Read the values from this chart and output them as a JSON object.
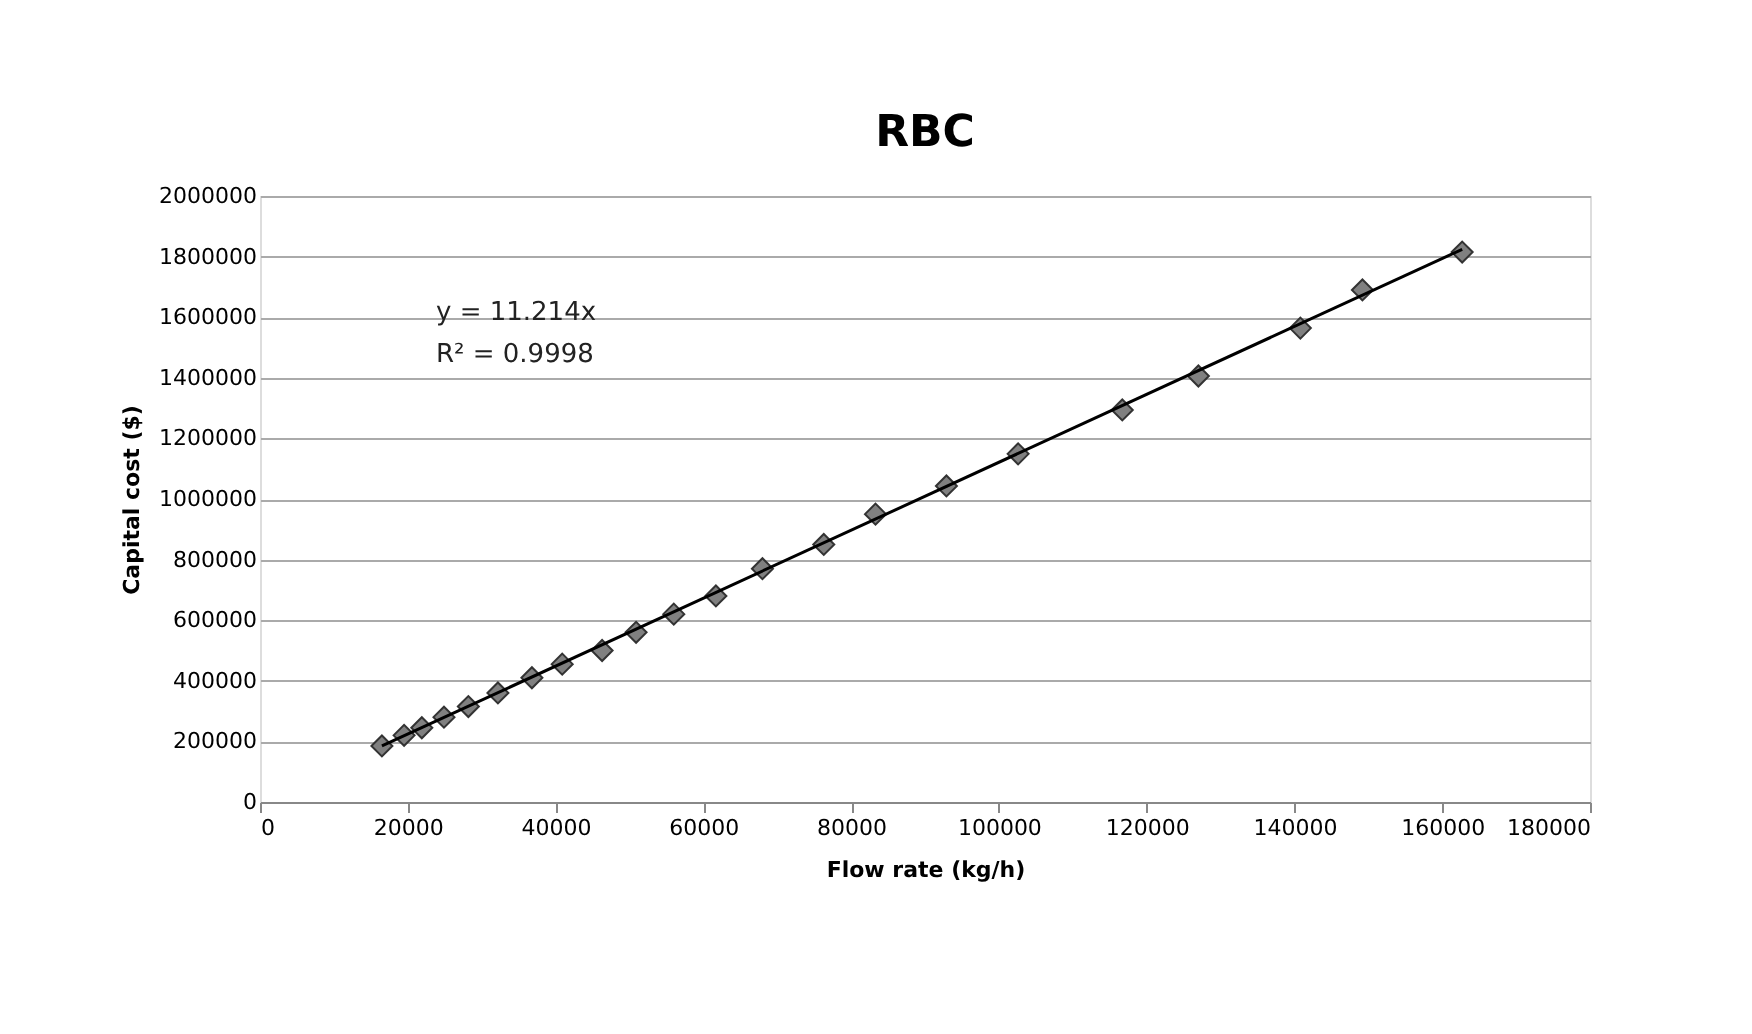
{
  "chart_data": {
    "type": "scatter",
    "title": "RBC",
    "xlabel": "Flow rate (kg/h)",
    "ylabel": "Capital cost ($)",
    "series": [
      {
        "marker": "diamond",
        "color": "#808080",
        "x": [
          16500,
          19500,
          21900,
          24900,
          28200,
          32200,
          36800,
          40900,
          46300,
          50900,
          56000,
          61700,
          68000,
          76300,
          83300,
          92900,
          102600,
          116700,
          127000,
          140800,
          149200,
          162700
        ],
        "values": [
          185000,
          220000,
          245000,
          280000,
          315000,
          360000,
          410000,
          455000,
          500000,
          560000,
          620000,
          680000,
          770000,
          850000,
          950000,
          1043000,
          1149000,
          1294000,
          1406000,
          1564000,
          1690000,
          1815000
        ]
      },
      {
        "type": "line",
        "marker": "none",
        "color": "#000000",
        "x": [
          16500,
          162700
        ],
        "values": [
          185000,
          1824000
        ]
      }
    ],
    "annotations": [
      "y = 11.214x",
      "R² = 0.9998"
    ],
    "grid": "y",
    "xlim": [
      0,
      180000
    ],
    "xticks": [
      0,
      20000,
      40000,
      60000,
      80000,
      100000,
      120000,
      140000,
      160000,
      180000
    ],
    "ylim": [
      0,
      2000000
    ],
    "yticks": [
      0,
      200000,
      400000,
      600000,
      800000,
      1000000,
      1200000,
      1400000,
      1600000,
      1800000,
      2000000
    ]
  }
}
